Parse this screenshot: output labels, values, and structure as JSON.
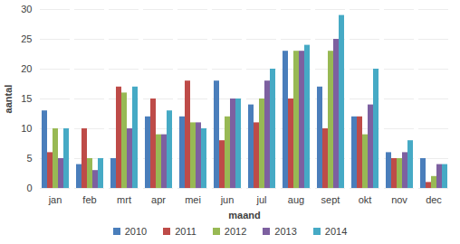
{
  "chart_data": {
    "type": "bar",
    "categories": [
      "jan",
      "feb",
      "mrt",
      "apr",
      "mei",
      "jun",
      "jul",
      "aug",
      "sept",
      "okt",
      "nov",
      "dec"
    ],
    "series": [
      {
        "name": "2010",
        "color": "#4a7ebb",
        "values": [
          13,
          4,
          5,
          12,
          12,
          18,
          14,
          23,
          17,
          12,
          6,
          5
        ]
      },
      {
        "name": "2011",
        "color": "#be4b48",
        "values": [
          6,
          10,
          17,
          15,
          18,
          8,
          11,
          15,
          10,
          12,
          5,
          1
        ]
      },
      {
        "name": "2012",
        "color": "#98b954",
        "values": [
          10,
          5,
          16,
          9,
          11,
          12,
          15,
          23,
          23,
          9,
          5,
          2
        ]
      },
      {
        "name": "2013",
        "color": "#7d60a0",
        "values": [
          5,
          3,
          10,
          9,
          11,
          15,
          18,
          23,
          25,
          14,
          6,
          4
        ]
      },
      {
        "name": "2014",
        "color": "#46aac5",
        "values": [
          10,
          5,
          17,
          13,
          10,
          15,
          20,
          24,
          29,
          20,
          8,
          4
        ]
      }
    ],
    "x_label": "maand",
    "y_label": "aantal",
    "ylim": [
      0,
      30
    ],
    "yticks": [
      0,
      5,
      10,
      15,
      20,
      25,
      30
    ],
    "grid": true,
    "legend": "bottom"
  }
}
